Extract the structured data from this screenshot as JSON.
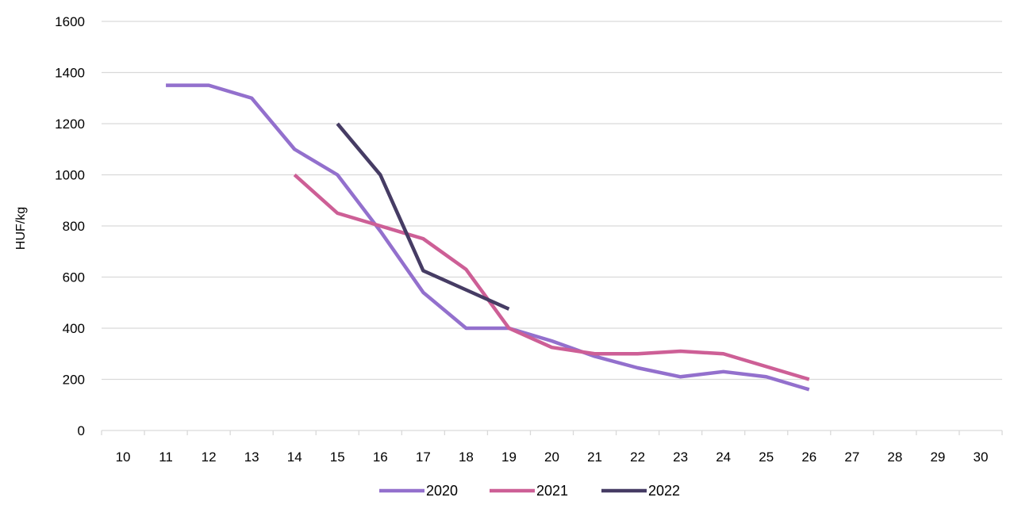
{
  "chart_data": {
    "type": "line",
    "ylabel": "HUF/kg",
    "xlabel": "",
    "title": "",
    "ylim": [
      0,
      1600
    ],
    "yticks": [
      0,
      200,
      400,
      600,
      800,
      1000,
      1200,
      1400,
      1600
    ],
    "categories": [
      "10",
      "11",
      "12",
      "13",
      "14",
      "15",
      "16",
      "17",
      "18",
      "19",
      "20",
      "21",
      "22",
      "23",
      "24",
      "25",
      "26",
      "27",
      "28",
      "29",
      "30"
    ],
    "grid": "horizontal",
    "legend_position": "bottom",
    "series": [
      {
        "name": "2020",
        "color": "#9370cd",
        "values": [
          null,
          1350,
          1350,
          1300,
          1100,
          1000,
          780,
          540,
          400,
          400,
          350,
          290,
          245,
          210,
          230,
          210,
          160,
          null,
          null,
          null,
          null
        ]
      },
      {
        "name": "2021",
        "color": "#cd5f96",
        "values": [
          null,
          null,
          null,
          null,
          1000,
          850,
          800,
          750,
          630,
          400,
          325,
          300,
          300,
          310,
          300,
          250,
          200,
          null,
          null,
          null,
          null
        ]
      },
      {
        "name": "2022",
        "color": "#463c64",
        "values": [
          null,
          null,
          null,
          null,
          null,
          1200,
          1000,
          625,
          550,
          475,
          null,
          null,
          null,
          null,
          null,
          null,
          null,
          null,
          null,
          null,
          null
        ]
      }
    ]
  }
}
